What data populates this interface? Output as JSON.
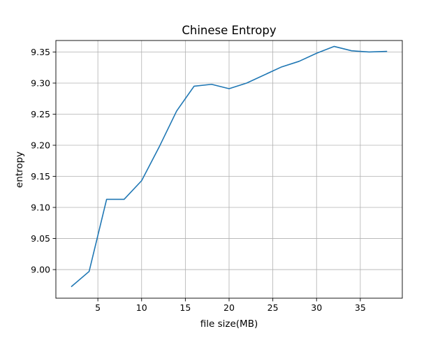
{
  "chart_data": {
    "type": "line",
    "title": "Chinese Entropy",
    "xlabel": "file size(MB)",
    "ylabel": "entropy",
    "xlim": [
      0.2,
      39.8
    ],
    "ylim": [
      8.954,
      9.3685
    ],
    "xticks": [
      5,
      10,
      15,
      20,
      25,
      30,
      35
    ],
    "yticks": [
      9.0,
      9.05,
      9.1,
      9.15,
      9.2,
      9.25,
      9.3,
      9.35
    ],
    "xtick_labels": [
      "5",
      "10",
      "15",
      "20",
      "25",
      "30",
      "35"
    ],
    "ytick_labels": [
      "9.00",
      "9.05",
      "9.10",
      "9.15",
      "9.20",
      "9.25",
      "9.30",
      "9.35"
    ],
    "grid": true,
    "series": [
      {
        "color": "#1f77b4",
        "x": [
          2,
          4,
          6,
          8,
          10,
          12,
          14,
          16,
          18,
          20,
          22,
          26,
          28,
          30,
          32,
          34,
          36,
          38
        ],
        "y": [
          8.973,
          8.997,
          9.113,
          9.113,
          9.143,
          9.197,
          9.255,
          9.295,
          9.298,
          9.291,
          9.3,
          9.326,
          9.335,
          9.348,
          9.359,
          9.352,
          9.35,
          9.351
        ]
      }
    ]
  }
}
